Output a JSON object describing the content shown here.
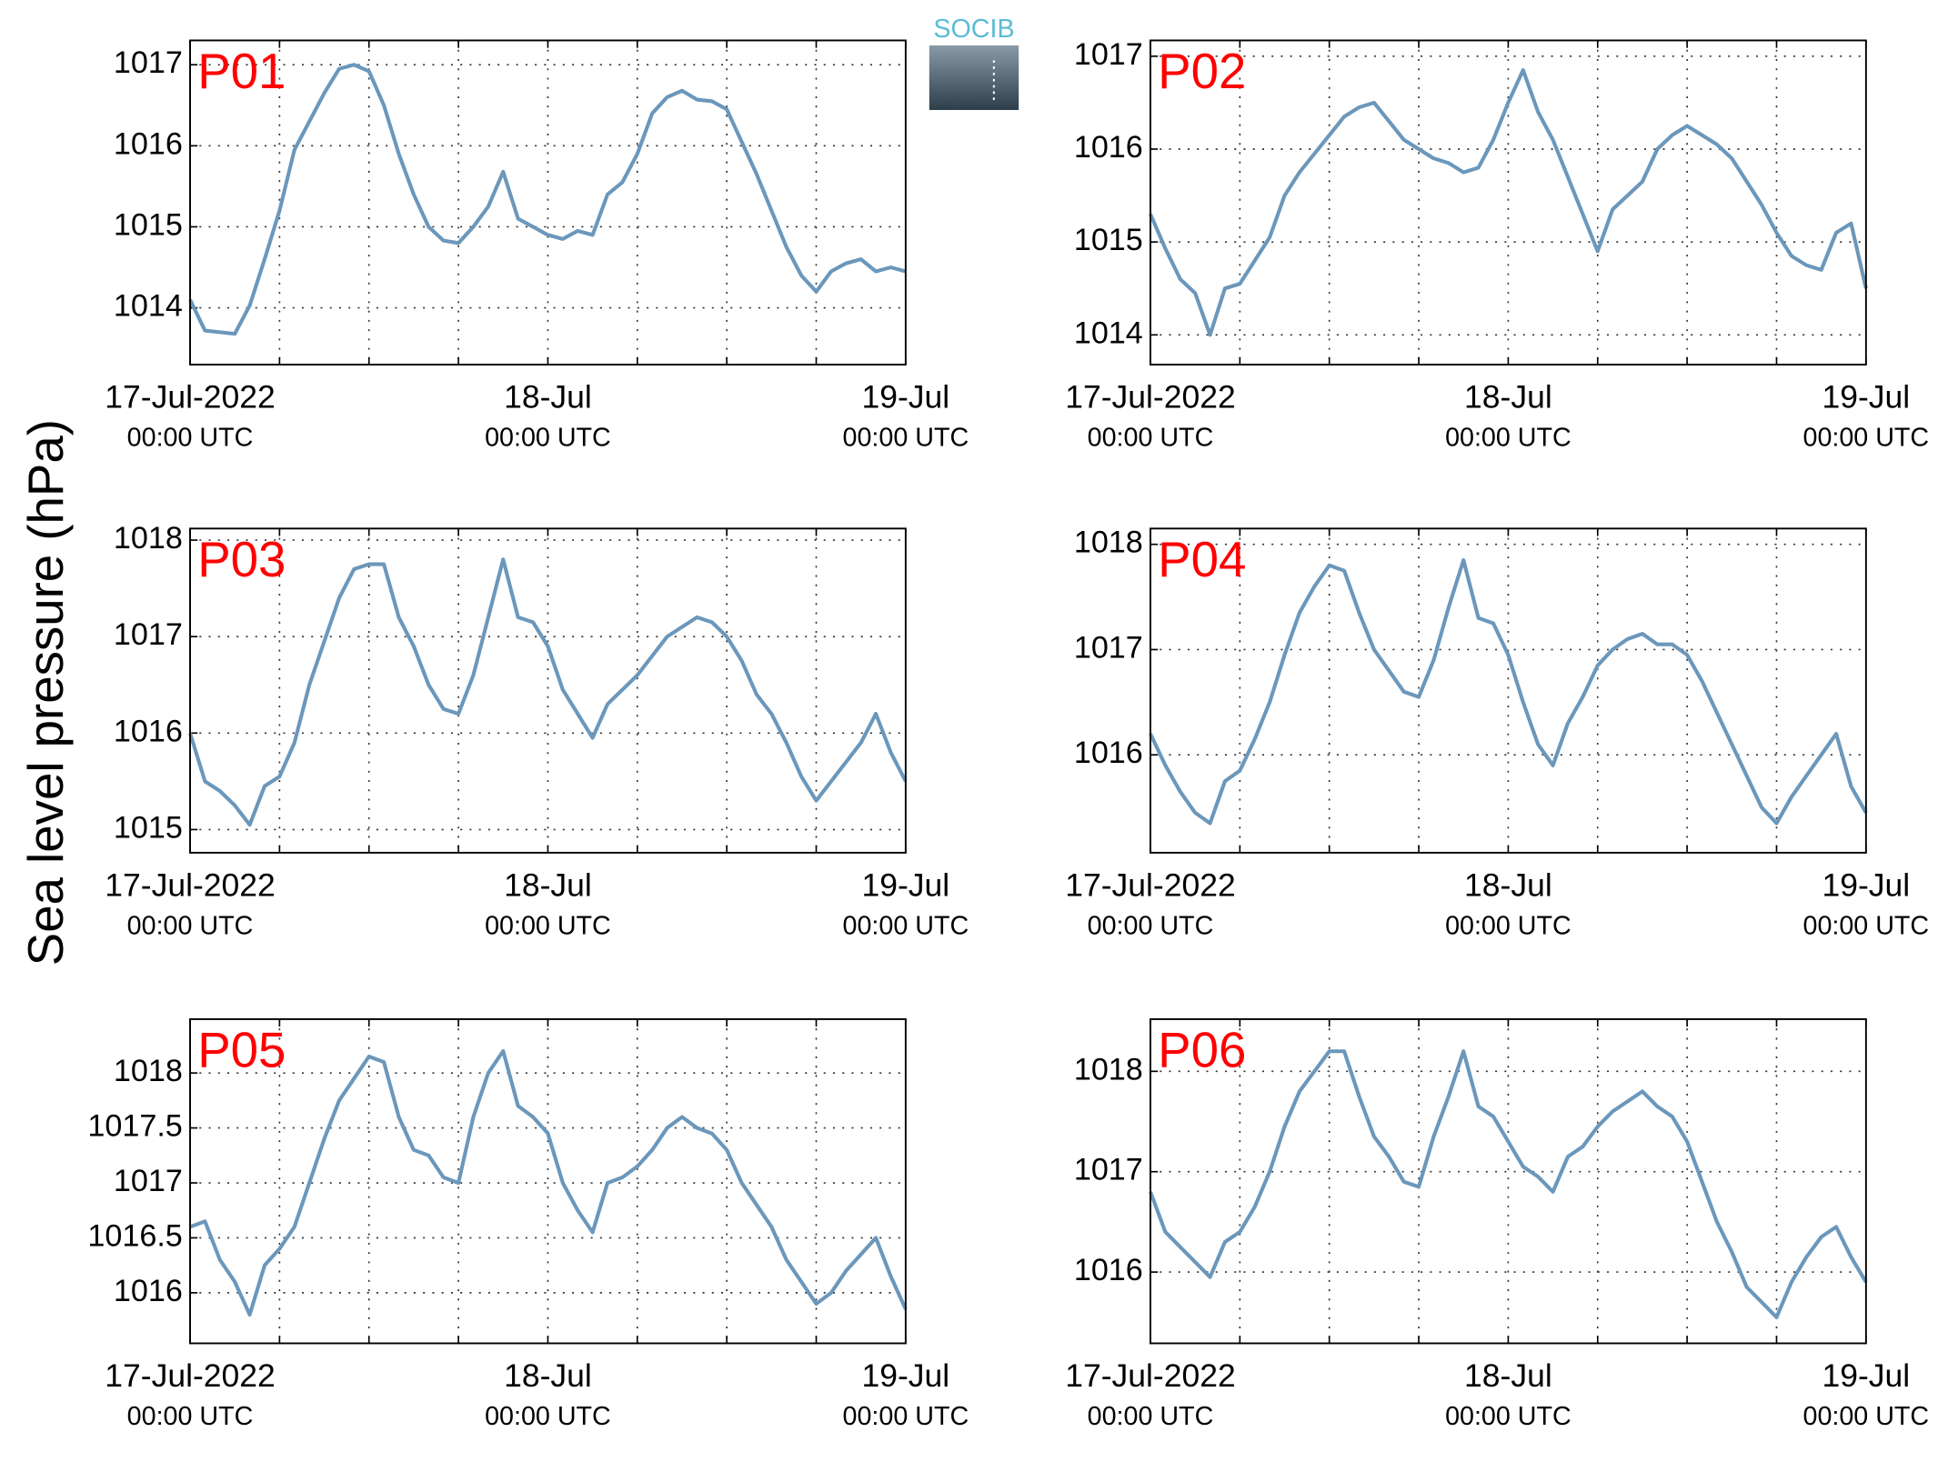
{
  "ylabel": "Sea level pressure (hPa)",
  "logo": "SOCIB",
  "chart_data": [
    {
      "type": "line",
      "title": "P01",
      "color": "#6b97bb",
      "grid": true,
      "x": [
        "2022-07-17T00:00Z",
        "2022-07-17T01:00Z",
        "2022-07-17T02:00Z",
        "2022-07-17T03:00Z",
        "2022-07-17T04:00Z",
        "2022-07-17T05:00Z",
        "2022-07-17T06:00Z",
        "2022-07-17T07:00Z",
        "2022-07-17T08:00Z",
        "2022-07-17T09:00Z",
        "2022-07-17T10:00Z",
        "2022-07-17T11:00Z",
        "2022-07-17T12:00Z",
        "2022-07-17T13:00Z",
        "2022-07-17T14:00Z",
        "2022-07-17T15:00Z",
        "2022-07-17T16:00Z",
        "2022-07-17T17:00Z",
        "2022-07-17T18:00Z",
        "2022-07-17T19:00Z",
        "2022-07-17T20:00Z",
        "2022-07-17T21:00Z",
        "2022-07-17T22:00Z",
        "2022-07-17T23:00Z",
        "2022-07-18T00:00Z",
        "2022-07-18T01:00Z",
        "2022-07-18T02:00Z",
        "2022-07-18T03:00Z",
        "2022-07-18T04:00Z",
        "2022-07-18T05:00Z",
        "2022-07-18T06:00Z",
        "2022-07-18T07:00Z",
        "2022-07-18T08:00Z",
        "2022-07-18T09:00Z",
        "2022-07-18T10:00Z",
        "2022-07-18T11:00Z",
        "2022-07-18T12:00Z",
        "2022-07-18T13:00Z",
        "2022-07-18T14:00Z",
        "2022-07-18T15:00Z",
        "2022-07-18T16:00Z",
        "2022-07-18T17:00Z",
        "2022-07-18T18:00Z",
        "2022-07-18T19:00Z",
        "2022-07-18T20:00Z",
        "2022-07-18T21:00Z",
        "2022-07-18T22:00Z",
        "2022-07-18T23:00Z",
        "2022-07-19T00:00Z"
      ],
      "values": [
        1014.1,
        1013.72,
        1013.7,
        1013.68,
        1014.03,
        1014.6,
        1015.2,
        1015.95,
        1016.3,
        1016.65,
        1016.95,
        1017.0,
        1016.92,
        1016.5,
        1015.9,
        1015.4,
        1015.0,
        1014.83,
        1014.8,
        1015.0,
        1015.25,
        1015.68,
        1015.1,
        1015.0,
        1014.9,
        1014.85,
        1014.95,
        1014.9,
        1015.4,
        1015.55,
        1015.9,
        1016.4,
        1016.6,
        1016.68,
        1016.57,
        1016.55,
        1016.45,
        1016.05,
        1015.65,
        1015.2,
        1014.75,
        1014.4,
        1014.2,
        1014.45,
        1014.55,
        1014.6,
        1014.45,
        1014.5,
        1014.45
      ],
      "xlim": [
        "2022-07-17T00:00Z",
        "2022-07-19T00:00Z"
      ],
      "xticks": [
        {
          "value": "2022-07-17T00:00Z",
          "label": [
            "17-Jul-2022",
            "00:00 UTC"
          ]
        },
        "2022-07-17T06:00Z",
        "2022-07-17T12:00Z",
        "2022-07-17T18:00Z",
        {
          "value": "2022-07-18T00:00Z",
          "label": [
            "18-Jul",
            "00:00 UTC"
          ]
        },
        "2022-07-18T06:00Z",
        "2022-07-18T12:00Z",
        "2022-07-18T18:00Z",
        {
          "value": "2022-07-19T00:00Z",
          "label": [
            "19-Jul",
            "00:00 UTC"
          ]
        }
      ],
      "ylim": [
        1013.3,
        1017.3
      ],
      "yticks": [
        1014,
        1015,
        1016,
        1017
      ]
    },
    {
      "type": "line",
      "title": "P02",
      "color": "#6b97bb",
      "grid": true,
      "x": [
        "2022-07-17T00:00Z",
        "2022-07-17T01:00Z",
        "2022-07-17T02:00Z",
        "2022-07-17T03:00Z",
        "2022-07-17T04:00Z",
        "2022-07-17T05:00Z",
        "2022-07-17T06:00Z",
        "2022-07-17T07:00Z",
        "2022-07-17T08:00Z",
        "2022-07-17T09:00Z",
        "2022-07-17T10:00Z",
        "2022-07-17T11:00Z",
        "2022-07-17T12:00Z",
        "2022-07-17T13:00Z",
        "2022-07-17T14:00Z",
        "2022-07-17T15:00Z",
        "2022-07-17T16:00Z",
        "2022-07-17T17:00Z",
        "2022-07-17T18:00Z",
        "2022-07-17T19:00Z",
        "2022-07-17T20:00Z",
        "2022-07-17T21:00Z",
        "2022-07-17T22:00Z",
        "2022-07-17T23:00Z",
        "2022-07-18T00:00Z",
        "2022-07-18T01:00Z",
        "2022-07-18T02:00Z",
        "2022-07-18T03:00Z",
        "2022-07-18T04:00Z",
        "2022-07-18T05:00Z",
        "2022-07-18T06:00Z",
        "2022-07-18T07:00Z",
        "2022-07-18T08:00Z",
        "2022-07-18T09:00Z",
        "2022-07-18T10:00Z",
        "2022-07-18T11:00Z",
        "2022-07-18T12:00Z",
        "2022-07-18T13:00Z",
        "2022-07-18T14:00Z",
        "2022-07-18T15:00Z",
        "2022-07-18T16:00Z",
        "2022-07-18T17:00Z",
        "2022-07-18T18:00Z",
        "2022-07-18T19:00Z",
        "2022-07-18T20:00Z",
        "2022-07-18T21:00Z",
        "2022-07-18T22:00Z",
        "2022-07-18T23:00Z",
        "2022-07-19T00:00Z"
      ],
      "values": [
        1015.3,
        1014.93,
        1014.6,
        1014.45,
        1014.0,
        1014.5,
        1014.55,
        1014.8,
        1015.05,
        1015.5,
        1015.75,
        1015.95,
        1016.15,
        1016.35,
        1016.45,
        1016.5,
        1016.3,
        1016.1,
        1016.0,
        1015.9,
        1015.85,
        1015.75,
        1015.8,
        1016.1,
        1016.5,
        1016.85,
        1016.4,
        1016.1,
        1015.7,
        1015.3,
        1014.9,
        1015.35,
        1015.5,
        1015.65,
        1016.0,
        1016.15,
        1016.25,
        1016.15,
        1016.05,
        1015.9,
        1015.65,
        1015.4,
        1015.1,
        1014.85,
        1014.75,
        1014.7,
        1015.1,
        1015.2,
        1014.5
      ],
      "xlim": [
        "2022-07-17T00:00Z",
        "2022-07-19T00:00Z"
      ],
      "xticks": [
        {
          "value": "2022-07-17T00:00Z",
          "label": [
            "17-Jul-2022",
            "00:00 UTC"
          ]
        },
        "2022-07-17T06:00Z",
        "2022-07-17T12:00Z",
        "2022-07-17T18:00Z",
        {
          "value": "2022-07-18T00:00Z",
          "label": [
            "18-Jul",
            "00:00 UTC"
          ]
        },
        "2022-07-18T06:00Z",
        "2022-07-18T12:00Z",
        "2022-07-18T18:00Z",
        {
          "value": "2022-07-19T00:00Z",
          "label": [
            "19-Jul",
            "00:00 UTC"
          ]
        }
      ],
      "ylim": [
        1013.68,
        1017.17
      ],
      "yticks": [
        1014,
        1015,
        1016,
        1017
      ]
    },
    {
      "type": "line",
      "title": "P03",
      "color": "#6b97bb",
      "grid": true,
      "x": [
        "2022-07-17T00:00Z",
        "2022-07-17T01:00Z",
        "2022-07-17T02:00Z",
        "2022-07-17T03:00Z",
        "2022-07-17T04:00Z",
        "2022-07-17T05:00Z",
        "2022-07-17T06:00Z",
        "2022-07-17T07:00Z",
        "2022-07-17T08:00Z",
        "2022-07-17T09:00Z",
        "2022-07-17T10:00Z",
        "2022-07-17T11:00Z",
        "2022-07-17T12:00Z",
        "2022-07-17T13:00Z",
        "2022-07-17T14:00Z",
        "2022-07-17T15:00Z",
        "2022-07-17T16:00Z",
        "2022-07-17T17:00Z",
        "2022-07-17T18:00Z",
        "2022-07-17T19:00Z",
        "2022-07-17T20:00Z",
        "2022-07-17T21:00Z",
        "2022-07-17T22:00Z",
        "2022-07-17T23:00Z",
        "2022-07-18T00:00Z",
        "2022-07-18T01:00Z",
        "2022-07-18T02:00Z",
        "2022-07-18T03:00Z",
        "2022-07-18T04:00Z",
        "2022-07-18T05:00Z",
        "2022-07-18T06:00Z",
        "2022-07-18T07:00Z",
        "2022-07-18T08:00Z",
        "2022-07-18T09:00Z",
        "2022-07-18T10:00Z",
        "2022-07-18T11:00Z",
        "2022-07-18T12:00Z",
        "2022-07-18T13:00Z",
        "2022-07-18T14:00Z",
        "2022-07-18T15:00Z",
        "2022-07-18T16:00Z",
        "2022-07-18T17:00Z",
        "2022-07-18T18:00Z",
        "2022-07-18T19:00Z",
        "2022-07-18T20:00Z",
        "2022-07-18T21:00Z",
        "2022-07-18T22:00Z",
        "2022-07-18T23:00Z",
        "2022-07-19T00:00Z"
      ],
      "values": [
        1016.0,
        1015.5,
        1015.4,
        1015.25,
        1015.05,
        1015.45,
        1015.55,
        1015.9,
        1016.5,
        1016.95,
        1017.4,
        1017.7,
        1017.75,
        1017.75,
        1017.2,
        1016.9,
        1016.5,
        1016.25,
        1016.2,
        1016.6,
        1017.2,
        1017.8,
        1017.2,
        1017.15,
        1016.9,
        1016.45,
        1016.2,
        1015.95,
        1016.3,
        1016.45,
        1016.6,
        1016.8,
        1017.0,
        1017.1,
        1017.2,
        1017.15,
        1017.0,
        1016.75,
        1016.4,
        1016.2,
        1015.9,
        1015.55,
        1015.3,
        1015.5,
        1015.7,
        1015.9,
        1016.2,
        1015.8,
        1015.5
      ],
      "xlim": [
        "2022-07-17T00:00Z",
        "2022-07-19T00:00Z"
      ],
      "xticks": [
        {
          "value": "2022-07-17T00:00Z",
          "label": [
            "17-Jul-2022",
            "00:00 UTC"
          ]
        },
        "2022-07-17T06:00Z",
        "2022-07-17T12:00Z",
        "2022-07-17T18:00Z",
        {
          "value": "2022-07-18T00:00Z",
          "label": [
            "18-Jul",
            "00:00 UTC"
          ]
        },
        "2022-07-18T06:00Z",
        "2022-07-18T12:00Z",
        "2022-07-18T18:00Z",
        {
          "value": "2022-07-19T00:00Z",
          "label": [
            "19-Jul",
            "00:00 UTC"
          ]
        }
      ],
      "ylim": [
        1014.76,
        1018.12
      ],
      "yticks": [
        1015,
        1016,
        1017,
        1018
      ]
    },
    {
      "type": "line",
      "title": "P04",
      "color": "#6b97bb",
      "grid": true,
      "x": [
        "2022-07-17T00:00Z",
        "2022-07-17T01:00Z",
        "2022-07-17T02:00Z",
        "2022-07-17T03:00Z",
        "2022-07-17T04:00Z",
        "2022-07-17T05:00Z",
        "2022-07-17T06:00Z",
        "2022-07-17T07:00Z",
        "2022-07-17T08:00Z",
        "2022-07-17T09:00Z",
        "2022-07-17T10:00Z",
        "2022-07-17T11:00Z",
        "2022-07-17T12:00Z",
        "2022-07-17T13:00Z",
        "2022-07-17T14:00Z",
        "2022-07-17T15:00Z",
        "2022-07-17T16:00Z",
        "2022-07-17T17:00Z",
        "2022-07-17T18:00Z",
        "2022-07-17T19:00Z",
        "2022-07-17T20:00Z",
        "2022-07-17T21:00Z",
        "2022-07-17T22:00Z",
        "2022-07-17T23:00Z",
        "2022-07-18T00:00Z",
        "2022-07-18T01:00Z",
        "2022-07-18T02:00Z",
        "2022-07-18T03:00Z",
        "2022-07-18T04:00Z",
        "2022-07-18T05:00Z",
        "2022-07-18T06:00Z",
        "2022-07-18T07:00Z",
        "2022-07-18T08:00Z",
        "2022-07-18T09:00Z",
        "2022-07-18T10:00Z",
        "2022-07-18T11:00Z",
        "2022-07-18T12:00Z",
        "2022-07-18T13:00Z",
        "2022-07-18T14:00Z",
        "2022-07-18T15:00Z",
        "2022-07-18T16:00Z",
        "2022-07-18T17:00Z",
        "2022-07-18T18:00Z",
        "2022-07-18T19:00Z",
        "2022-07-18T20:00Z",
        "2022-07-18T21:00Z",
        "2022-07-18T22:00Z",
        "2022-07-18T23:00Z",
        "2022-07-19T00:00Z"
      ],
      "values": [
        1016.2,
        1015.9,
        1015.65,
        1015.45,
        1015.35,
        1015.75,
        1015.85,
        1016.15,
        1016.5,
        1016.95,
        1017.35,
        1017.6,
        1017.8,
        1017.75,
        1017.35,
        1017.0,
        1016.8,
        1016.6,
        1016.55,
        1016.9,
        1017.4,
        1017.85,
        1017.3,
        1017.25,
        1016.95,
        1016.5,
        1016.1,
        1015.9,
        1016.3,
        1016.55,
        1016.85,
        1017.0,
        1017.1,
        1017.15,
        1017.05,
        1017.05,
        1016.95,
        1016.7,
        1016.4,
        1016.1,
        1015.8,
        1015.5,
        1015.35,
        1015.6,
        1015.8,
        1016.0,
        1016.2,
        1015.7,
        1015.45
      ],
      "xlim": [
        "2022-07-17T00:00Z",
        "2022-07-19T00:00Z"
      ],
      "xticks": [
        {
          "value": "2022-07-17T00:00Z",
          "label": [
            "17-Jul-2022",
            "00:00 UTC"
          ]
        },
        "2022-07-17T06:00Z",
        "2022-07-17T12:00Z",
        "2022-07-17T18:00Z",
        {
          "value": "2022-07-18T00:00Z",
          "label": [
            "18-Jul",
            "00:00 UTC"
          ]
        },
        "2022-07-18T06:00Z",
        "2022-07-18T12:00Z",
        "2022-07-18T18:00Z",
        {
          "value": "2022-07-19T00:00Z",
          "label": [
            "19-Jul",
            "00:00 UTC"
          ]
        }
      ],
      "ylim": [
        1015.07,
        1018.15
      ],
      "yticks": [
        1016,
        1017,
        1018
      ]
    },
    {
      "type": "line",
      "title": "P05",
      "color": "#6b97bb",
      "grid": true,
      "x": [
        "2022-07-17T00:00Z",
        "2022-07-17T01:00Z",
        "2022-07-17T02:00Z",
        "2022-07-17T03:00Z",
        "2022-07-17T04:00Z",
        "2022-07-17T05:00Z",
        "2022-07-17T06:00Z",
        "2022-07-17T07:00Z",
        "2022-07-17T08:00Z",
        "2022-07-17T09:00Z",
        "2022-07-17T10:00Z",
        "2022-07-17T11:00Z",
        "2022-07-17T12:00Z",
        "2022-07-17T13:00Z",
        "2022-07-17T14:00Z",
        "2022-07-17T15:00Z",
        "2022-07-17T16:00Z",
        "2022-07-17T17:00Z",
        "2022-07-17T18:00Z",
        "2022-07-17T19:00Z",
        "2022-07-17T20:00Z",
        "2022-07-17T21:00Z",
        "2022-07-17T22:00Z",
        "2022-07-17T23:00Z",
        "2022-07-18T00:00Z",
        "2022-07-18T01:00Z",
        "2022-07-18T02:00Z",
        "2022-07-18T03:00Z",
        "2022-07-18T04:00Z",
        "2022-07-18T05:00Z",
        "2022-07-18T06:00Z",
        "2022-07-18T07:00Z",
        "2022-07-18T08:00Z",
        "2022-07-18T09:00Z",
        "2022-07-18T10:00Z",
        "2022-07-18T11:00Z",
        "2022-07-18T12:00Z",
        "2022-07-18T13:00Z",
        "2022-07-18T14:00Z",
        "2022-07-18T15:00Z",
        "2022-07-18T16:00Z",
        "2022-07-18T17:00Z",
        "2022-07-18T18:00Z",
        "2022-07-18T19:00Z",
        "2022-07-18T20:00Z",
        "2022-07-18T21:00Z",
        "2022-07-18T22:00Z",
        "2022-07-18T23:00Z",
        "2022-07-19T00:00Z"
      ],
      "values": [
        1016.6,
        1016.65,
        1016.3,
        1016.1,
        1015.8,
        1016.25,
        1016.4,
        1016.6,
        1017.0,
        1017.4,
        1017.75,
        1017.95,
        1018.15,
        1018.1,
        1017.6,
        1017.3,
        1017.25,
        1017.05,
        1017.0,
        1017.6,
        1018.0,
        1018.2,
        1017.7,
        1017.6,
        1017.45,
        1017.0,
        1016.75,
        1016.55,
        1017.0,
        1017.05,
        1017.15,
        1017.3,
        1017.5,
        1017.6,
        1017.5,
        1017.45,
        1017.3,
        1017.0,
        1016.8,
        1016.6,
        1016.3,
        1016.1,
        1015.9,
        1016.0,
        1016.2,
        1016.35,
        1016.5,
        1016.15,
        1015.85
      ],
      "xlim": [
        "2022-07-17T00:00Z",
        "2022-07-19T00:00Z"
      ],
      "xticks": [
        {
          "value": "2022-07-17T00:00Z",
          "label": [
            "17-Jul-2022",
            "00:00 UTC"
          ]
        },
        "2022-07-17T06:00Z",
        "2022-07-17T12:00Z",
        "2022-07-17T18:00Z",
        {
          "value": "2022-07-18T00:00Z",
          "label": [
            "18-Jul",
            "00:00 UTC"
          ]
        },
        "2022-07-18T06:00Z",
        "2022-07-18T12:00Z",
        "2022-07-18T18:00Z",
        {
          "value": "2022-07-19T00:00Z",
          "label": [
            "19-Jul",
            "00:00 UTC"
          ]
        }
      ],
      "ylim": [
        1015.54,
        1018.49
      ],
      "yticks": [
        1016,
        1016.5,
        1017,
        1017.5,
        1018
      ]
    },
    {
      "type": "line",
      "title": "P06",
      "color": "#6b97bb",
      "grid": true,
      "x": [
        "2022-07-17T00:00Z",
        "2022-07-17T01:00Z",
        "2022-07-17T02:00Z",
        "2022-07-17T03:00Z",
        "2022-07-17T04:00Z",
        "2022-07-17T05:00Z",
        "2022-07-17T06:00Z",
        "2022-07-17T07:00Z",
        "2022-07-17T08:00Z",
        "2022-07-17T09:00Z",
        "2022-07-17T10:00Z",
        "2022-07-17T11:00Z",
        "2022-07-17T12:00Z",
        "2022-07-17T13:00Z",
        "2022-07-17T14:00Z",
        "2022-07-17T15:00Z",
        "2022-07-17T16:00Z",
        "2022-07-17T17:00Z",
        "2022-07-17T18:00Z",
        "2022-07-17T19:00Z",
        "2022-07-17T20:00Z",
        "2022-07-17T21:00Z",
        "2022-07-17T22:00Z",
        "2022-07-17T23:00Z",
        "2022-07-18T00:00Z",
        "2022-07-18T01:00Z",
        "2022-07-18T02:00Z",
        "2022-07-18T03:00Z",
        "2022-07-18T04:00Z",
        "2022-07-18T05:00Z",
        "2022-07-18T06:00Z",
        "2022-07-18T07:00Z",
        "2022-07-18T08:00Z",
        "2022-07-18T09:00Z",
        "2022-07-18T10:00Z",
        "2022-07-18T11:00Z",
        "2022-07-18T12:00Z",
        "2022-07-18T13:00Z",
        "2022-07-18T14:00Z",
        "2022-07-18T15:00Z",
        "2022-07-18T16:00Z",
        "2022-07-18T17:00Z",
        "2022-07-18T18:00Z",
        "2022-07-18T19:00Z",
        "2022-07-18T20:00Z",
        "2022-07-18T21:00Z",
        "2022-07-18T22:00Z",
        "2022-07-18T23:00Z",
        "2022-07-19T00:00Z"
      ],
      "values": [
        1016.8,
        1016.4,
        1016.25,
        1016.1,
        1015.95,
        1016.3,
        1016.4,
        1016.65,
        1017.0,
        1017.45,
        1017.8,
        1018.0,
        1018.2,
        1018.2,
        1017.75,
        1017.35,
        1017.15,
        1016.9,
        1016.85,
        1017.35,
        1017.75,
        1018.2,
        1017.65,
        1017.55,
        1017.3,
        1017.05,
        1016.95,
        1016.8,
        1017.15,
        1017.25,
        1017.45,
        1017.6,
        1017.7,
        1017.8,
        1017.65,
        1017.55,
        1017.3,
        1016.9,
        1016.5,
        1016.2,
        1015.85,
        1015.7,
        1015.55,
        1015.9,
        1016.15,
        1016.35,
        1016.45,
        1016.15,
        1015.9
      ],
      "xlim": [
        "2022-07-17T00:00Z",
        "2022-07-19T00:00Z"
      ],
      "xticks": [
        {
          "value": "2022-07-17T00:00Z",
          "label": [
            "17-Jul-2022",
            "00:00 UTC"
          ]
        },
        "2022-07-17T06:00Z",
        "2022-07-17T12:00Z",
        "2022-07-17T18:00Z",
        {
          "value": "2022-07-18T00:00Z",
          "label": [
            "18-Jul",
            "00:00 UTC"
          ]
        },
        "2022-07-18T06:00Z",
        "2022-07-18T12:00Z",
        "2022-07-18T18:00Z",
        {
          "value": "2022-07-19T00:00Z",
          "label": [
            "19-Jul",
            "00:00 UTC"
          ]
        }
      ],
      "ylim": [
        1015.29,
        1018.52
      ],
      "yticks": [
        1016,
        1017,
        1018
      ]
    }
  ]
}
